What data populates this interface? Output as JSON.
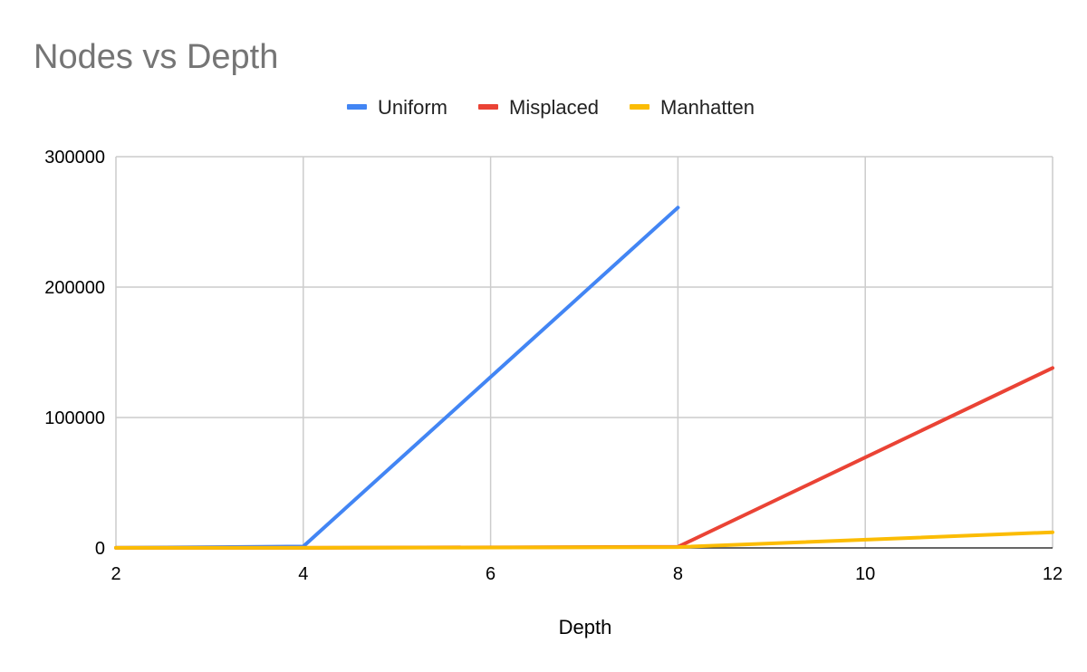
{
  "chart_data": {
    "type": "line",
    "title": "Nodes vs Depth",
    "xlabel": "Depth",
    "ylabel": "",
    "x": [
      2,
      4,
      8,
      12
    ],
    "xlim": [
      2,
      12
    ],
    "ylim": [
      0,
      300000
    ],
    "x_ticks": [
      "2",
      "4",
      "6",
      "8",
      "10",
      "12"
    ],
    "y_ticks": [
      "0",
      "100000",
      "200000",
      "300000"
    ],
    "grid": true,
    "legend_position": "top",
    "series": [
      {
        "name": "Uniform",
        "color": "#4285f4",
        "x": [
          2,
          4,
          8
        ],
        "values": [
          100,
          1100,
          261000
        ]
      },
      {
        "name": "Misplaced",
        "color": "#ea4335",
        "x": [
          2,
          4,
          8,
          12
        ],
        "values": [
          50,
          100,
          800,
          138000
        ]
      },
      {
        "name": "Manhatten",
        "color": "#fbbc04",
        "x": [
          2,
          4,
          8,
          12
        ],
        "values": [
          50,
          100,
          600,
          12000
        ]
      }
    ]
  }
}
